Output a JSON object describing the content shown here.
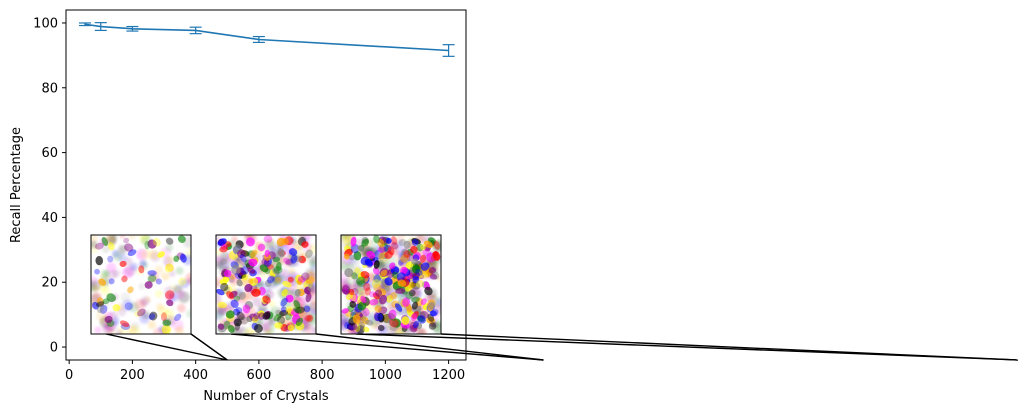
{
  "chart_data": {
    "type": "line",
    "title": "",
    "xlabel": "Number of Crystals",
    "ylabel": "Recall Percentage",
    "xlim": [
      -10,
      1255
    ],
    "ylim": [
      -4,
      104
    ],
    "xticks": [
      0,
      200,
      400,
      600,
      800,
      1000,
      1200
    ],
    "yticks": [
      0,
      20,
      40,
      60,
      80,
      100
    ],
    "grid": false,
    "legend": "none",
    "series": [
      {
        "color": "#1f77b4",
        "x": [
          50,
          100,
          200,
          400,
          600,
          1200
        ],
        "y": [
          99.6,
          98.9,
          98.2,
          97.7,
          94.9,
          91.5
        ],
        "err": [
          0.4,
          1.2,
          0.7,
          1.0,
          0.9,
          1.8
        ]
      }
    ],
    "insets": [
      {
        "image": "sample-50-crystals",
        "zoom_target_x": 500
      },
      {
        "image": "sample-600-crystals",
        "zoom_target_x": 1500
      },
      {
        "image": "sample-1200-crystals",
        "zoom_target_x": 3000
      }
    ],
    "crystal_palette": [
      "#0000ff",
      "#ff0000",
      "#008000",
      "#ffff00",
      "#ffa500",
      "#800080",
      "#000000",
      "#ff00ff",
      "#888888"
    ]
  }
}
